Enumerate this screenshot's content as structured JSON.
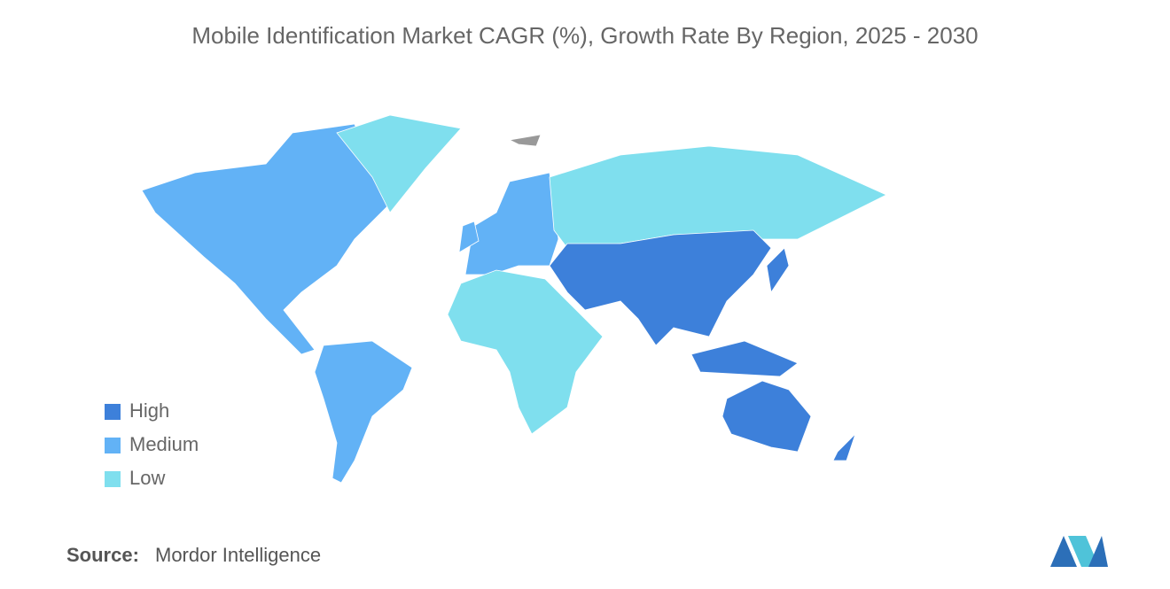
{
  "title": "Mobile Identification Market CAGR (%), Growth Rate By Region, 2025 - 2030",
  "legend": [
    {
      "label": "High",
      "color": "#3d80da"
    },
    {
      "label": "Medium",
      "color": "#62b2f6"
    },
    {
      "label": "Low",
      "color": "#7fdfee"
    }
  ],
  "source": {
    "label": "Source:",
    "text": "Mordor Intelligence"
  }
}
